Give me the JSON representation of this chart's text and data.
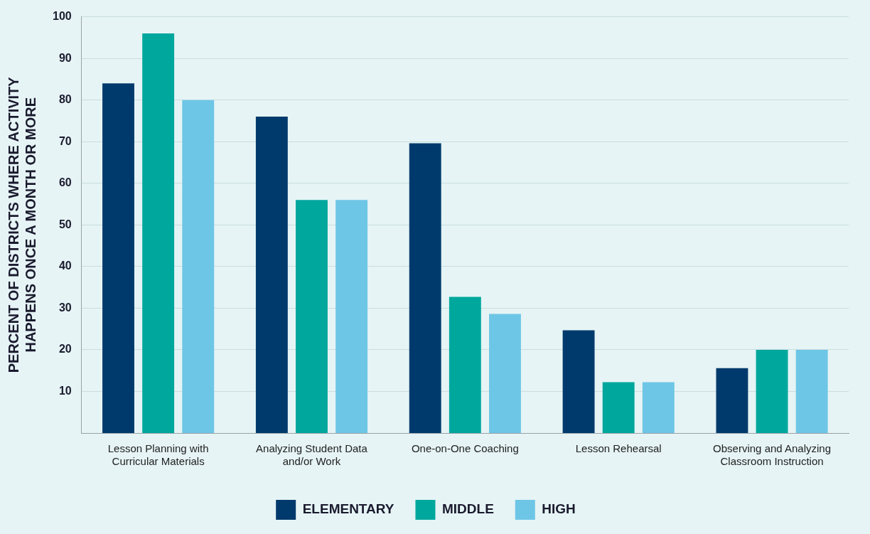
{
  "chart_data": {
    "type": "bar",
    "ylabel": "PERCENT OF DISTRICTS WHERE ACTIVITY HAPPENS ONCE A MONTH OR MORE",
    "categories": [
      "Lesson Planning with Curricular Materials",
      "Analyzing Student Data and/or Work",
      "One-on-One Coaching",
      "Lesson Rehearsal",
      "Observing and Analyzing Classroom Instruction"
    ],
    "series": [
      {
        "name": "ELEMENTARY",
        "color": "#003a6c",
        "values": [
          84,
          76,
          69.6,
          24.7,
          15.6
        ]
      },
      {
        "name": "MIDDLE",
        "color": "#00a79d",
        "values": [
          96,
          56,
          32.7,
          12.2,
          20
        ]
      },
      {
        "name": "HIGH",
        "color": "#6ec6e6",
        "values": [
          80,
          56,
          28.6,
          12.2,
          20
        ]
      }
    ],
    "ylim": [
      0,
      100
    ],
    "yticks": [
      10,
      20,
      30,
      40,
      50,
      60,
      70,
      80,
      90,
      100
    ],
    "grid": "y",
    "legend": "bottom"
  }
}
